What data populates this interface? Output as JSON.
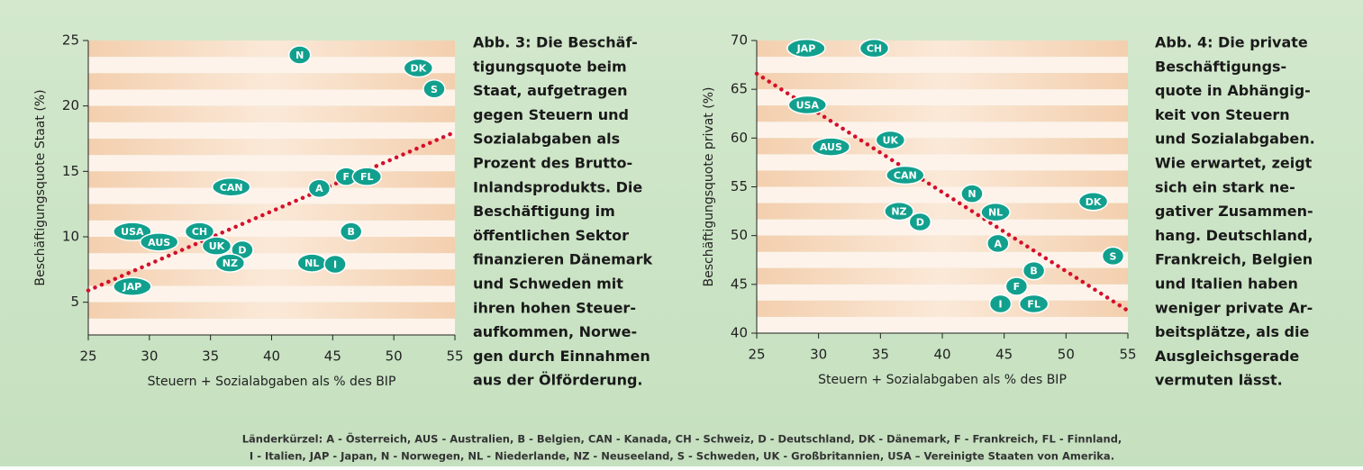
{
  "chart_data": [
    {
      "type": "scatter",
      "x_label": "Steuern + Sozialabgaben als % des BIP",
      "y_label": "Beschäftigungsquote Staat (%)",
      "xlim": [
        25,
        55
      ],
      "xticks": [
        25,
        30,
        35,
        40,
        45,
        50,
        55
      ],
      "ylim": [
        2.5,
        25
      ],
      "yticks": [
        5,
        10,
        15,
        20,
        25
      ],
      "marker_color": "#12a08e",
      "points": [
        {
          "label": "N",
          "x": 42.3,
          "y": 23.9
        },
        {
          "label": "DK",
          "x": 52.0,
          "y": 22.9
        },
        {
          "label": "S",
          "x": 53.3,
          "y": 21.3
        },
        {
          "label": "CAN",
          "x": 36.7,
          "y": 13.8
        },
        {
          "label": "A",
          "x": 43.9,
          "y": 13.7
        },
        {
          "label": "F",
          "x": 46.1,
          "y": 14.6
        },
        {
          "label": "FL",
          "x": 47.8,
          "y": 14.6
        },
        {
          "label": "USA",
          "x": 28.6,
          "y": 10.4
        },
        {
          "label": "AUS",
          "x": 30.8,
          "y": 9.6
        },
        {
          "label": "CH",
          "x": 34.1,
          "y": 10.4
        },
        {
          "label": "UK",
          "x": 35.5,
          "y": 9.3
        },
        {
          "label": "D",
          "x": 37.6,
          "y": 9.0
        },
        {
          "label": "NZ",
          "x": 36.6,
          "y": 8.0
        },
        {
          "label": "B",
          "x": 46.5,
          "y": 10.4
        },
        {
          "label": "NL",
          "x": 43.3,
          "y": 8.0
        },
        {
          "label": "I",
          "x": 45.2,
          "y": 7.9
        },
        {
          "label": "JAP",
          "x": 28.6,
          "y": 6.2
        }
      ],
      "trendline": {
        "color": "#d4102c",
        "x": [
          25,
          55
        ],
        "values": [
          5.9,
          18.0
        ]
      },
      "caption": [
        "Abb. 3: Die Beschäf-",
        "tigungsquote beim",
        "Staat, aufgetragen",
        "gegen Steuern und",
        "Sozialabgaben als",
        "Prozent des Brutto-",
        "Inlandsprodukts. Die",
        "Beschäftigung im",
        "öffentlichen Sektor",
        "finanzieren Dänemark",
        "und Schweden mit",
        "ihren hohen Steuer-",
        "aufkommen, Norwe-",
        "gen durch Einnahmen",
        "aus der Ölförderung."
      ]
    },
    {
      "type": "scatter",
      "x_label": "Steuern + Sozialabgaben als % des BIP",
      "y_label": "Beschäftigungsquote privat (%)",
      "xlim": [
        25,
        55
      ],
      "xticks": [
        25,
        30,
        35,
        40,
        45,
        50,
        55
      ],
      "ylim": [
        40,
        70
      ],
      "yticks": [
        40,
        45,
        50,
        55,
        60,
        65,
        70
      ],
      "marker_color": "#12a08e",
      "points": [
        {
          "label": "JAP",
          "x": 29.0,
          "y": 69.2
        },
        {
          "label": "CH",
          "x": 34.5,
          "y": 69.2
        },
        {
          "label": "USA",
          "x": 29.1,
          "y": 63.4
        },
        {
          "label": "AUS",
          "x": 31.0,
          "y": 59.1
        },
        {
          "label": "UK",
          "x": 35.8,
          "y": 59.8
        },
        {
          "label": "CAN",
          "x": 37.0,
          "y": 56.2
        },
        {
          "label": "N",
          "x": 42.4,
          "y": 54.3
        },
        {
          "label": "DK",
          "x": 52.2,
          "y": 53.5
        },
        {
          "label": "NZ",
          "x": 36.5,
          "y": 52.5
        },
        {
          "label": "D",
          "x": 38.2,
          "y": 51.4
        },
        {
          "label": "NL",
          "x": 44.3,
          "y": 52.4
        },
        {
          "label": "A",
          "x": 44.5,
          "y": 49.2
        },
        {
          "label": "S",
          "x": 53.8,
          "y": 47.9
        },
        {
          "label": "B",
          "x": 47.4,
          "y": 46.4
        },
        {
          "label": "F",
          "x": 46.0,
          "y": 44.8
        },
        {
          "label": "I",
          "x": 44.7,
          "y": 43.0
        },
        {
          "label": "FL",
          "x": 47.4,
          "y": 43.0
        }
      ],
      "trendline": {
        "color": "#d4102c",
        "x": [
          25,
          55
        ],
        "values": [
          66.6,
          42.3
        ]
      },
      "caption": [
        "Abb. 4: Die private",
        "Beschäftigungs-",
        "quote in Abhängig-",
        "keit von Steuern",
        "und Sozialabgaben.",
        "Wie erwartet, zeigt",
        "sich ein stark ne-",
        "gativer Zusammen-",
        "hang. Deutschland,",
        "Frankreich, Belgien",
        "und Italien haben",
        "weniger private Ar-",
        "beitsplätze, als die",
        "Ausgleichsgerade",
        "vermuten lässt."
      ]
    }
  ],
  "footnote": [
    "Länderkürzel: A - Österreich, AUS - Australien, B - Belgien, CAN - Kanada, CH - Schweiz, D - Deutschland, DK - Dänemark, F - Frankreich, FL - Finnland,",
    "I - Italien, JAP - Japan, N - Norwegen, NL - Niederlande, NZ - Neuseeland, S - Schweden, UK - Großbritannien, USA – Vereinigte Staaten von Amerika."
  ]
}
